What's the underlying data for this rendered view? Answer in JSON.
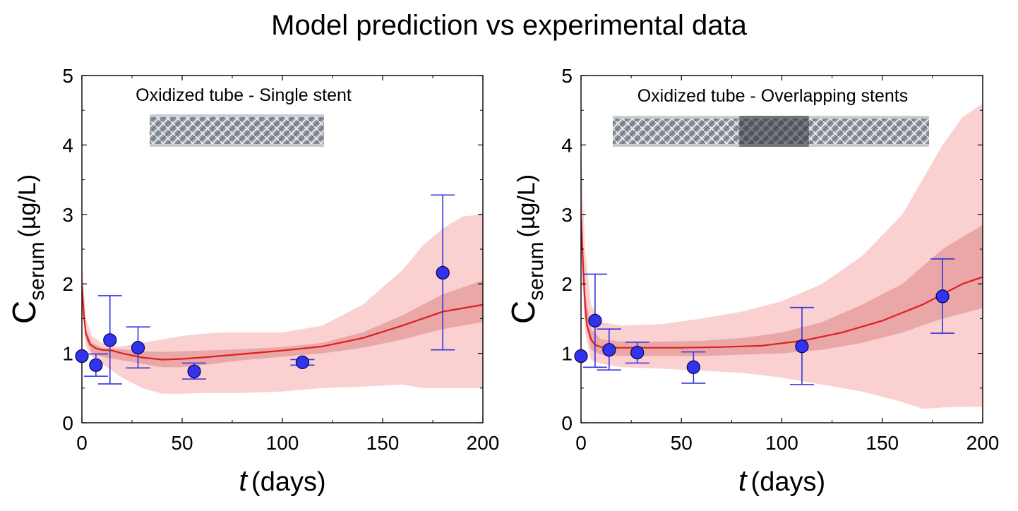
{
  "title": "Model prediction vs experimental data",
  "chart_data": [
    {
      "type": "line",
      "panel_label": "Oxidized tube - Single stent",
      "xlabel_var": "t",
      "xlabel_unit": "(days)",
      "ylabel_var": "C",
      "ylabel_sub": "serum",
      "ylabel_unit": "(µg/L)",
      "xlim": [
        0,
        200
      ],
      "ylim": [
        0,
        5
      ],
      "xticks": [
        0,
        50,
        100,
        150,
        200
      ],
      "yticks": [
        0,
        1,
        2,
        3,
        4,
        5
      ],
      "grid": false,
      "colors": {
        "line": "#e01e1e",
        "outer_band": "#fbd0d0",
        "inner_band": "#e9a7a7",
        "marker": "#3333ee",
        "errorbar": "#3333dd"
      },
      "model_line": {
        "x": [
          0,
          1,
          2,
          4,
          7,
          10,
          15,
          20,
          30,
          40,
          50,
          60,
          80,
          100,
          120,
          140,
          160,
          180,
          200
        ],
        "y": [
          1.97,
          1.55,
          1.28,
          1.13,
          1.07,
          1.05,
          1.04,
          1.0,
          0.94,
          0.91,
          0.92,
          0.94,
          0.99,
          1.04,
          1.1,
          1.22,
          1.4,
          1.6,
          1.7
        ]
      },
      "outer_band": {
        "x": [
          0,
          2,
          5,
          10,
          15,
          20,
          30,
          40,
          50,
          60,
          70,
          80,
          100,
          120,
          140,
          160,
          170,
          180,
          190,
          200
        ],
        "upper": [
          2.35,
          1.5,
          1.25,
          1.15,
          1.1,
          1.1,
          1.15,
          1.2,
          1.25,
          1.28,
          1.3,
          1.3,
          1.3,
          1.4,
          1.7,
          2.2,
          2.55,
          2.8,
          2.97,
          3.0
        ],
        "lower": [
          1.7,
          1.1,
          0.95,
          0.85,
          0.75,
          0.65,
          0.5,
          0.42,
          0.42,
          0.43,
          0.43,
          0.43,
          0.45,
          0.5,
          0.52,
          0.55,
          0.5,
          0.5,
          0.5,
          0.5
        ]
      },
      "inner_band": {
        "x": [
          0,
          2,
          5,
          10,
          20,
          30,
          40,
          50,
          60,
          80,
          100,
          120,
          140,
          160,
          180,
          200
        ],
        "upper": [
          2.05,
          1.35,
          1.15,
          1.08,
          1.06,
          1.03,
          1.02,
          1.03,
          1.04,
          1.06,
          1.09,
          1.15,
          1.3,
          1.55,
          1.85,
          2.05
        ],
        "lower": [
          1.85,
          1.2,
          1.0,
          0.95,
          0.9,
          0.85,
          0.8,
          0.8,
          0.83,
          0.9,
          0.95,
          1.0,
          1.08,
          1.2,
          1.35,
          1.45
        ]
      },
      "data_points": [
        {
          "x": 0,
          "y": 0.96,
          "err_low": 0.96,
          "err_high": 0.96
        },
        {
          "x": 7,
          "y": 0.83,
          "err_low": 0.67,
          "err_high": 0.99
        },
        {
          "x": 14,
          "y": 1.19,
          "err_low": 0.56,
          "err_high": 1.83
        },
        {
          "x": 28,
          "y": 1.08,
          "err_low": 0.79,
          "err_high": 1.38
        },
        {
          "x": 56,
          "y": 0.74,
          "err_low": 0.63,
          "err_high": 0.86
        },
        {
          "x": 110,
          "y": 0.87,
          "err_low": 0.83,
          "err_high": 0.91
        },
        {
          "x": 180,
          "y": 2.16,
          "err_low": 1.05,
          "err_high": 3.28
        }
      ]
    },
    {
      "type": "line",
      "panel_label": "Oxidized tube - Overlapping stents",
      "xlabel_var": "t",
      "xlabel_unit": "(days)",
      "ylabel_var": "C",
      "ylabel_sub": "serum",
      "ylabel_unit": "(µg/L)",
      "xlim": [
        0,
        200
      ],
      "ylim": [
        0,
        5
      ],
      "xticks": [
        0,
        50,
        100,
        150,
        200
      ],
      "yticks": [
        0,
        1,
        2,
        3,
        4,
        5
      ],
      "grid": false,
      "colors": {
        "line": "#e01e1e",
        "outer_band": "#fbd0d0",
        "inner_band": "#e9a7a7",
        "marker": "#3333ee",
        "errorbar": "#3333dd"
      },
      "model_line": {
        "x": [
          0,
          1,
          2,
          3,
          5,
          7,
          10,
          15,
          20,
          30,
          50,
          70,
          90,
          110,
          130,
          150,
          170,
          190,
          200
        ],
        "y": [
          2.95,
          2.3,
          1.7,
          1.4,
          1.2,
          1.12,
          1.09,
          1.08,
          1.08,
          1.08,
          1.08,
          1.09,
          1.11,
          1.18,
          1.3,
          1.47,
          1.7,
          2.0,
          2.1
        ]
      },
      "outer_band": {
        "x": [
          0,
          2,
          5,
          10,
          20,
          40,
          60,
          80,
          100,
          120,
          140,
          160,
          170,
          180,
          190,
          200
        ],
        "upper": [
          4.0,
          2.5,
          1.7,
          1.45,
          1.4,
          1.42,
          1.5,
          1.6,
          1.75,
          2.0,
          2.4,
          3.0,
          3.5,
          4.0,
          4.4,
          4.6
        ],
        "lower": [
          2.5,
          1.3,
          0.9,
          0.85,
          0.8,
          0.78,
          0.75,
          0.72,
          0.65,
          0.55,
          0.45,
          0.3,
          0.2,
          0.22,
          0.23,
          0.23
        ]
      },
      "inner_band": {
        "x": [
          0,
          2,
          5,
          10,
          20,
          40,
          60,
          80,
          100,
          120,
          140,
          160,
          180,
          200
        ],
        "upper": [
          3.3,
          1.9,
          1.35,
          1.2,
          1.17,
          1.17,
          1.18,
          1.22,
          1.3,
          1.45,
          1.7,
          2.0,
          2.5,
          2.85
        ],
        "lower": [
          2.7,
          1.5,
          1.05,
          0.98,
          0.96,
          0.96,
          0.96,
          0.98,
          1.0,
          1.05,
          1.15,
          1.3,
          1.5,
          1.65
        ]
      },
      "data_points": [
        {
          "x": 0,
          "y": 0.96,
          "err_low": 0.96,
          "err_high": 0.96
        },
        {
          "x": 7,
          "y": 1.47,
          "err_low": 0.8,
          "err_high": 2.14
        },
        {
          "x": 14,
          "y": 1.05,
          "err_low": 0.76,
          "err_high": 1.35
        },
        {
          "x": 28,
          "y": 1.01,
          "err_low": 0.86,
          "err_high": 1.16
        },
        {
          "x": 56,
          "y": 0.8,
          "err_low": 0.57,
          "err_high": 1.02
        },
        {
          "x": 110,
          "y": 1.1,
          "err_low": 0.55,
          "err_high": 1.66
        },
        {
          "x": 180,
          "y": 1.82,
          "err_low": 1.29,
          "err_high": 2.36
        }
      ]
    }
  ]
}
